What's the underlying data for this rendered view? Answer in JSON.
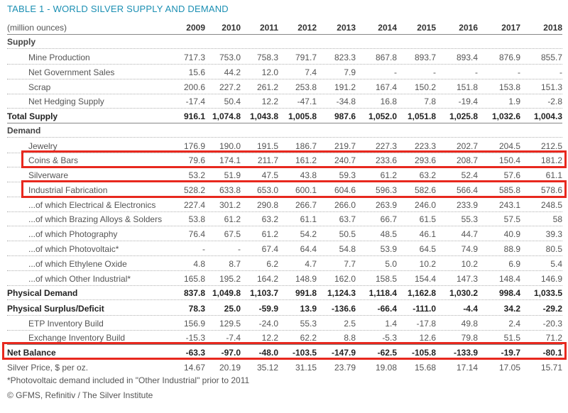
{
  "title": "TABLE 1 - WORLD SILVER SUPPLY AND DEMAND",
  "unit_label": "(million ounces)",
  "years": [
    "2009",
    "2010",
    "2011",
    "2012",
    "2013",
    "2014",
    "2015",
    "2016",
    "2017",
    "2018"
  ],
  "rows": [
    {
      "label": "Supply",
      "values": []
    },
    {
      "label": "Mine Production",
      "values": [
        "717.3",
        "753.0",
        "758.3",
        "791.7",
        "823.3",
        "867.8",
        "893.7",
        "893.4",
        "876.9",
        "855.7"
      ]
    },
    {
      "label": "Net Government Sales",
      "values": [
        "15.6",
        "44.2",
        "12.0",
        "7.4",
        "7.9",
        "-",
        "-",
        "-",
        "-",
        "-"
      ]
    },
    {
      "label": "Scrap",
      "values": [
        "200.6",
        "227.2",
        "261.2",
        "253.8",
        "191.2",
        "167.4",
        "150.2",
        "151.8",
        "153.8",
        "151.3"
      ]
    },
    {
      "label": "Net Hedging Supply",
      "values": [
        "-17.4",
        "50.4",
        "12.2",
        "-47.1",
        "-34.8",
        "16.8",
        "7.8",
        "-19.4",
        "1.9",
        "-2.8"
      ]
    },
    {
      "label": "Total Supply",
      "values": [
        "916.1",
        "1,074.8",
        "1,043.8",
        "1,005.8",
        "987.6",
        "1,052.0",
        "1,051.8",
        "1,025.8",
        "1,032.6",
        "1,004.3"
      ]
    },
    {
      "label": "Demand",
      "values": []
    },
    {
      "label": "Jewelry",
      "values": [
        "176.9",
        "190.0",
        "191.5",
        "186.7",
        "219.7",
        "227.3",
        "223.3",
        "202.7",
        "204.5",
        "212.5"
      ]
    },
    {
      "label": "Coins & Bars",
      "values": [
        "79.6",
        "174.1",
        "211.7",
        "161.2",
        "240.7",
        "233.6",
        "293.6",
        "208.7",
        "150.4",
        "181.2"
      ]
    },
    {
      "label": "Silverware",
      "values": [
        "53.2",
        "51.9",
        "47.5",
        "43.8",
        "59.3",
        "61.2",
        "63.2",
        "52.4",
        "57.6",
        "61.1"
      ]
    },
    {
      "label": "Industrial Fabrication",
      "values": [
        "528.2",
        "633.8",
        "653.0",
        "600.1",
        "604.6",
        "596.3",
        "582.6",
        "566.4",
        "585.8",
        "578.6"
      ]
    },
    {
      "label": "...of which Electrical & Electronics",
      "values": [
        "227.4",
        "301.2",
        "290.8",
        "266.7",
        "266.0",
        "263.9",
        "246.0",
        "233.9",
        "243.1",
        "248.5"
      ]
    },
    {
      "label": "...of which Brazing Alloys & Solders",
      "values": [
        "53.8",
        "61.2",
        "63.2",
        "61.1",
        "63.7",
        "66.7",
        "61.5",
        "55.3",
        "57.5",
        "58"
      ]
    },
    {
      "label": "...of which Photography",
      "values": [
        "76.4",
        "67.5",
        "61.2",
        "54.2",
        "50.5",
        "48.5",
        "46.1",
        "44.7",
        "40.9",
        "39.3"
      ]
    },
    {
      "label": "...of which Photovoltaic*",
      "values": [
        "-",
        "-",
        "67.4",
        "64.4",
        "54.8",
        "53.9",
        "64.5",
        "74.9",
        "88.9",
        "80.5"
      ]
    },
    {
      "label": "...of which Ethylene Oxide",
      "values": [
        "4.8",
        "8.7",
        "6.2",
        "4.7",
        "7.7",
        "5.0",
        "10.2",
        "10.2",
        "6.9",
        "5.4"
      ]
    },
    {
      "label": "...of which Other Industrial*",
      "values": [
        "165.8",
        "195.2",
        "164.2",
        "148.9",
        "162.0",
        "158.5",
        "154.4",
        "147.3",
        "148.4",
        "146.9"
      ]
    },
    {
      "label": "Physical Demand",
      "values": [
        "837.8",
        "1,049.8",
        "1,103.7",
        "991.8",
        "1,124.3",
        "1,118.4",
        "1,162.8",
        "1,030.2",
        "998.4",
        "1,033.5"
      ]
    },
    {
      "label": "Physical Surplus/Deficit",
      "values": [
        "78.3",
        "25.0",
        "-59.9",
        "13.9",
        "-136.6",
        "-66.4",
        "-111.0",
        "-4.4",
        "34.2",
        "-29.2"
      ]
    },
    {
      "label": "ETP Inventory Build",
      "values": [
        "156.9",
        "129.5",
        "-24.0",
        "55.3",
        "2.5",
        "1.4",
        "-17.8",
        "49.8",
        "2.4",
        "-20.3"
      ]
    },
    {
      "label": "Exchange Inventory Build",
      "values": [
        "-15.3",
        "-7.4",
        "12.2",
        "62.2",
        "8.8",
        "-5.3",
        "12.6",
        "79.8",
        "51.5",
        "71.2"
      ]
    },
    {
      "label": "Net Balance",
      "values": [
        "-63.3",
        "-97.0",
        "-48.0",
        "-103.5",
        "-147.9",
        "-62.5",
        "-105.8",
        "-133.9",
        "-19.7",
        "-80.1"
      ]
    },
    {
      "label": "Silver Price, $ per oz.",
      "values": [
        "14.67",
        "20.19",
        "35.12",
        "31.15",
        "23.79",
        "19.08",
        "15.68",
        "17.14",
        "17.05",
        "15.71"
      ]
    }
  ],
  "footnote": "*Photovoltaic demand included in \"Other Industrial\" prior to 2011",
  "source": "© GFMS, Refinitiv / The Silver Institute",
  "highlight_color": "#e8281e"
}
